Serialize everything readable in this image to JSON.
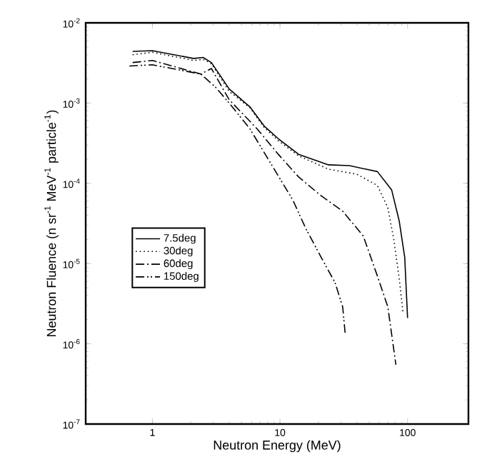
{
  "chart_data": {
    "type": "line",
    "xlabel": "Neutron Energy (MeV)",
    "ylabel": "Neutron Fluence (n sr$^{-1}$ MeV$^{-1}$ particle$^{-1}$)",
    "log": "xy",
    "xlim": [
      0.3,
      300
    ],
    "ylim": [
      1e-07,
      0.01
    ],
    "xticks": [
      1,
      10,
      100
    ],
    "yticks": [
      {
        "value": 1e-07,
        "label": "10$^{-7}$"
      },
      {
        "value": 1e-06,
        "label": "10$^{-6}$"
      },
      {
        "value": 1e-05,
        "label": "10$^{-5}$"
      },
      {
        "value": 0.0001,
        "label": "10$^{-4}$"
      },
      {
        "value": 0.001,
        "label": "10$^{-3}$"
      },
      {
        "value": 0.01,
        "label": "10$^{-2}$"
      }
    ],
    "legend": "left",
    "grid": false,
    "marker": "none",
    "series": [
      {
        "name": "7.5deg",
        "color": "#000000",
        "line_style": "solid",
        "x": [
          0.7,
          1.0,
          2.1,
          2.5,
          2.9,
          4,
          5.8,
          7.5,
          9.7,
          14,
          24,
          35,
          58,
          75,
          86,
          95,
          100
        ],
        "values": [
          0.0044,
          0.0045,
          0.0036,
          0.0037,
          0.0032,
          0.0015,
          0.0009,
          0.00052,
          0.00036,
          0.00023,
          0.00017,
          0.000166,
          0.00014,
          8.3e-05,
          3.4e-05,
          1.2e-05,
          2.1e-06
        ]
      },
      {
        "name": "30deg",
        "color": "#000000",
        "line_style": "dotted",
        "x": [
          0.7,
          1.0,
          2.1,
          2.5,
          2.9,
          4,
          5.8,
          7.5,
          9.7,
          14,
          24,
          40,
          58,
          70,
          78,
          86,
          92
        ],
        "values": [
          0.004,
          0.0043,
          0.0034,
          0.0035,
          0.0031,
          0.0014,
          0.00088,
          0.0005,
          0.00034,
          0.00022,
          0.00015,
          0.00013,
          9.4e-05,
          5e-05,
          2e-05,
          6.5e-06,
          2.5e-06
        ]
      },
      {
        "name": "60deg",
        "color": "#000000",
        "line_style": "dashdot",
        "x": [
          0.7,
          1.0,
          2.4,
          2.9,
          4,
          6.6,
          9.7,
          14,
          21,
          31,
          45,
          58,
          70,
          81
        ],
        "values": [
          0.0032,
          0.0034,
          0.0023,
          0.0027,
          0.0011,
          0.00048,
          0.00023,
          0.00012,
          7e-05,
          4.5e-05,
          2.2e-05,
          7e-06,
          2.9e-06,
          5.5e-07
        ]
      },
      {
        "name": "150deg",
        "color": "#000000",
        "line_style": "dashdotdot",
        "x": [
          0.66,
          1.0,
          2.4,
          3.1,
          4,
          5.8,
          8.6,
          12.6,
          16,
          21,
          27,
          31,
          32.5
        ],
        "values": [
          0.0029,
          0.003,
          0.0023,
          0.0016,
          0.001,
          0.00048,
          0.00017,
          6.2e-05,
          2.7e-05,
          1.2e-05,
          5.8e-06,
          2.9e-06,
          1.3e-06
        ]
      }
    ]
  }
}
